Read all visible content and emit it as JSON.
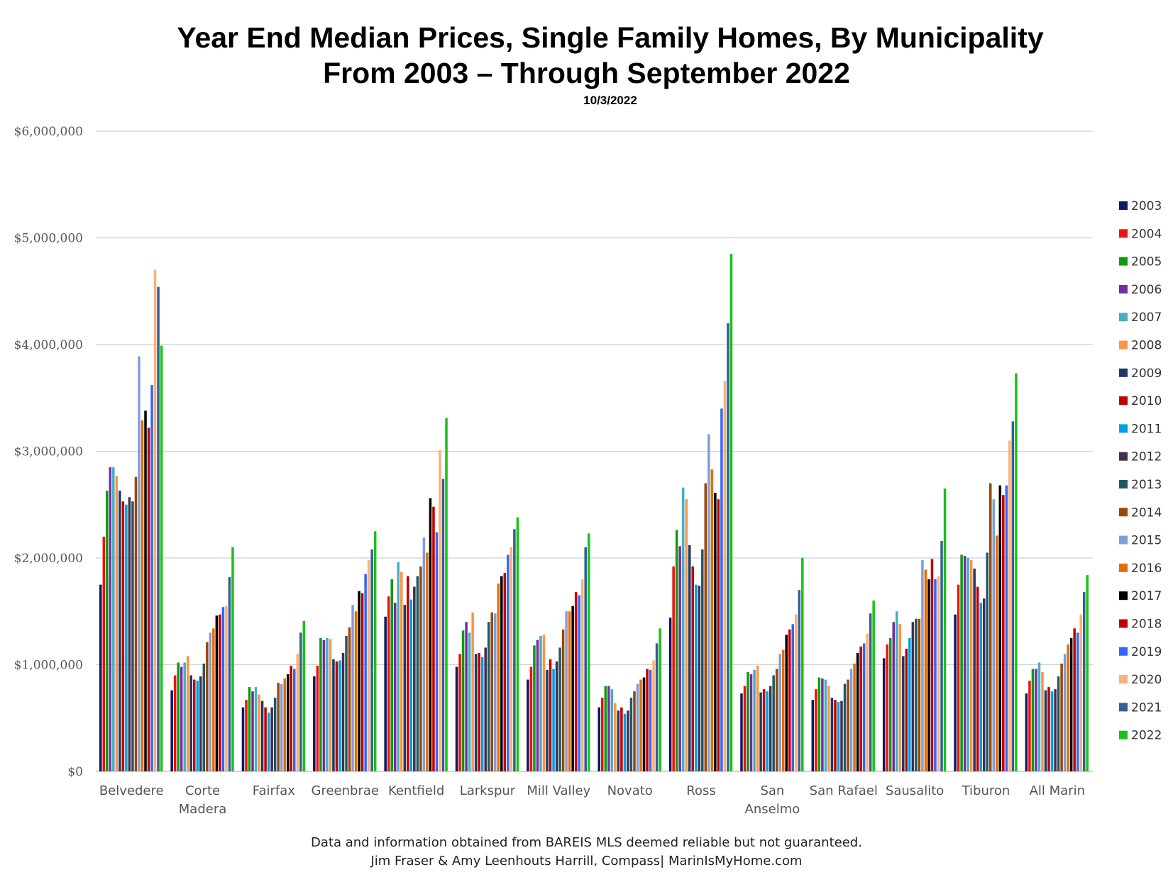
{
  "title": "Year End Median Prices, Single Family Homes, By Municipality",
  "title_line2": "From 2003 – Through September 2022",
  "subtitle": "10/3/2022",
  "footer": {
    "line1": "Data and information obtained from BAREIS MLS deemed reliable but not guaranteed.",
    "line2": "Jim Fraser & Amy Leenhouts Harrill, Compass| MarinIsMyHome.com"
  },
  "chart_data": {
    "type": "bar",
    "title": "Year End Median Prices, Single Family Homes, By Municipality",
    "ylim": [
      0,
      6000000
    ],
    "yticks": [
      {
        "value": 0,
        "label": "$0"
      },
      {
        "value": 1000000,
        "label": "$1,000,000"
      },
      {
        "value": 2000000,
        "label": "$2,000,000"
      },
      {
        "value": 3000000,
        "label": "$3,000,000"
      },
      {
        "value": 4000000,
        "label": "$4,000,000"
      },
      {
        "value": 5000000,
        "label": "$5,000,000"
      },
      {
        "value": 6000000,
        "label": "$6,000,000"
      }
    ],
    "grid": true,
    "legend_position": "right",
    "categories": [
      "Belvedere",
      "Corte Madera",
      "Fairfax",
      "Greenbrae",
      "Kentfield",
      "Larkspur",
      "Mill Valley",
      "Novato",
      "Ross",
      "San Anselmo",
      "San Rafael",
      "Sausalito",
      "Tiburon",
      "All Marin"
    ],
    "category_lines": [
      [
        "Belvedere"
      ],
      [
        "Corte",
        "Madera"
      ],
      [
        "Fairfax"
      ],
      [
        "Greenbrae"
      ],
      [
        "Kentfield"
      ],
      [
        "Larkspur"
      ],
      [
        "Mill Valley"
      ],
      [
        "Novato"
      ],
      [
        "Ross"
      ],
      [
        "San",
        "Anselmo"
      ],
      [
        "San Rafael"
      ],
      [
        "Sausalito"
      ],
      [
        "Tiburon"
      ],
      [
        "All Marin"
      ]
    ],
    "series": [
      {
        "name": "2003",
        "color": "#0d1a5c",
        "values": [
          1750000,
          760000,
          600000,
          890000,
          1450000,
          980000,
          860000,
          600000,
          1440000,
          730000,
          670000,
          1060000,
          1470000,
          730000
        ]
      },
      {
        "name": "2004",
        "color": "#ee1111",
        "values": [
          2200000,
          900000,
          670000,
          990000,
          1640000,
          1100000,
          980000,
          690000,
          1920000,
          800000,
          770000,
          1190000,
          1750000,
          850000
        ]
      },
      {
        "name": "2005",
        "color": "#119911",
        "values": [
          2630000,
          1020000,
          790000,
          1250000,
          1800000,
          1320000,
          1180000,
          800000,
          2260000,
          930000,
          880000,
          1250000,
          2030000,
          960000
        ]
      },
      {
        "name": "2006",
        "color": "#7030a0",
        "values": [
          2850000,
          980000,
          750000,
          1230000,
          1580000,
          1400000,
          1230000,
          800000,
          2110000,
          910000,
          870000,
          1400000,
          2020000,
          960000
        ]
      },
      {
        "name": "2007",
        "color": "#4bacc6",
        "values": [
          2850000,
          1020000,
          790000,
          1250000,
          1960000,
          1300000,
          1270000,
          770000,
          2660000,
          950000,
          860000,
          1500000,
          2000000,
          1020000
        ]
      },
      {
        "name": "2008",
        "color": "#f79646",
        "values": [
          2770000,
          1080000,
          720000,
          1240000,
          1870000,
          1490000,
          1280000,
          640000,
          2550000,
          990000,
          800000,
          1380000,
          1980000,
          930000
        ]
      },
      {
        "name": "2009",
        "color": "#1f3864",
        "values": [
          2630000,
          900000,
          660000,
          1050000,
          1560000,
          1100000,
          950000,
          570000,
          2120000,
          740000,
          690000,
          1080000,
          1900000,
          760000
        ]
      },
      {
        "name": "2010",
        "color": "#c00000",
        "values": [
          2530000,
          860000,
          600000,
          1030000,
          1830000,
          1110000,
          1050000,
          600000,
          1920000,
          770000,
          670000,
          1150000,
          1730000,
          790000
        ]
      },
      {
        "name": "2011",
        "color": "#00a0e0",
        "values": [
          2500000,
          850000,
          550000,
          1040000,
          1610000,
          1070000,
          960000,
          540000,
          1750000,
          750000,
          650000,
          1250000,
          1580000,
          750000
        ]
      },
      {
        "name": "2012",
        "color": "#403152",
        "values": [
          2570000,
          890000,
          600000,
          1110000,
          1730000,
          1160000,
          1030000,
          570000,
          1740000,
          800000,
          660000,
          1400000,
          1620000,
          770000
        ]
      },
      {
        "name": "2013",
        "color": "#215868",
        "values": [
          2530000,
          1010000,
          690000,
          1270000,
          1830000,
          1400000,
          1160000,
          690000,
          2080000,
          900000,
          820000,
          1430000,
          2050000,
          890000
        ]
      },
      {
        "name": "2014",
        "color": "#984807",
        "values": [
          2760000,
          1210000,
          830000,
          1350000,
          1920000,
          1490000,
          1330000,
          750000,
          2700000,
          960000,
          860000,
          1430000,
          2700000,
          1010000
        ]
      },
      {
        "name": "2015",
        "color": "#7f9fd6",
        "values": [
          3890000,
          1300000,
          820000,
          1560000,
          2190000,
          1480000,
          1500000,
          820000,
          3160000,
          1100000,
          960000,
          1980000,
          2550000,
          1100000
        ]
      },
      {
        "name": "2016",
        "color": "#e36c09",
        "values": [
          3290000,
          1340000,
          870000,
          1500000,
          2050000,
          1760000,
          1500000,
          860000,
          2830000,
          1140000,
          1010000,
          1890000,
          2210000,
          1190000
        ]
      },
      {
        "name": "2017",
        "color": "#000000",
        "values": [
          3380000,
          1460000,
          910000,
          1690000,
          2560000,
          1830000,
          1550000,
          880000,
          2610000,
          1280000,
          1110000,
          1800000,
          2680000,
          1250000
        ]
      },
      {
        "name": "2018",
        "color": "#c00000",
        "values": [
          3220000,
          1470000,
          990000,
          1670000,
          2480000,
          1860000,
          1680000,
          960000,
          2550000,
          1330000,
          1170000,
          1990000,
          2590000,
          1340000
        ]
      },
      {
        "name": "2019",
        "color": "#3366ff",
        "values": [
          3620000,
          1540000,
          960000,
          1850000,
          2240000,
          2030000,
          1650000,
          950000,
          3400000,
          1380000,
          1200000,
          1800000,
          2680000,
          1300000
        ]
      },
      {
        "name": "2020",
        "color": "#fab07a",
        "values": [
          4700000,
          1550000,
          1100000,
          1980000,
          3010000,
          2100000,
          1800000,
          1040000,
          3660000,
          1470000,
          1290000,
          1830000,
          3100000,
          1470000
        ]
      },
      {
        "name": "2021",
        "color": "#35608f",
        "values": [
          4540000,
          1820000,
          1300000,
          2080000,
          2740000,
          2270000,
          2100000,
          1200000,
          4200000,
          1700000,
          1480000,
          2160000,
          3280000,
          1680000
        ]
      },
      {
        "name": "2022",
        "color": "#18c218",
        "values": [
          3990000,
          2100000,
          1410000,
          2250000,
          3310000,
          2380000,
          2230000,
          1340000,
          4850000,
          2000000,
          1600000,
          2650000,
          3730000,
          1840000
        ]
      }
    ]
  }
}
